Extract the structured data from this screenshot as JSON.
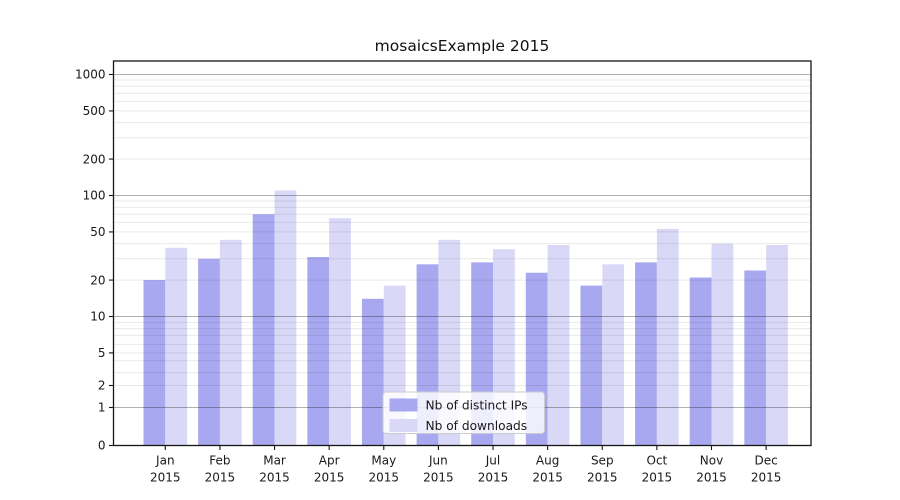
{
  "figure": {
    "background": "#ffffff"
  },
  "chart_data": {
    "type": "bar",
    "title": "mosaicsExample 2015",
    "categories": [
      "Jan",
      "Feb",
      "Mar",
      "Apr",
      "May",
      "Jun",
      "Jul",
      "Aug",
      "Sep",
      "Oct",
      "Nov",
      "Dec"
    ],
    "category_year": "2015",
    "series": [
      {
        "name": "Nb of distinct IPs",
        "color": "#a8a8f0",
        "values": [
          20,
          30,
          70,
          31,
          14,
          27,
          28,
          23,
          18,
          28,
          21,
          24
        ]
      },
      {
        "name": "Nb of downloads",
        "color": "#d9d9f7",
        "values": [
          37,
          43,
          110,
          65,
          18,
          43,
          36,
          39,
          27,
          53,
          40,
          39
        ]
      }
    ],
    "xlabel": "",
    "ylabel": "",
    "yscale": "symlog-like (linear 0-1, compressed log below 10, log decades above 10)",
    "ylim": [
      0,
      1400
    ],
    "y_tick_labels": [
      1000,
      500,
      200,
      100,
      50,
      20,
      10,
      5,
      2,
      1,
      0
    ],
    "y_major_gridlines": [
      1,
      10,
      100,
      1000
    ],
    "y_minor_gridlines": [
      2,
      3,
      4,
      5,
      6,
      7,
      8,
      9,
      20,
      30,
      40,
      50,
      60,
      70,
      80,
      90,
      200,
      300,
      400,
      500,
      600,
      700,
      800,
      900
    ],
    "grid": "on",
    "legend": {
      "position": "lower center inside plot",
      "entries": [
        "Nb of distinct IPs",
        "Nb of downloads"
      ]
    }
  }
}
